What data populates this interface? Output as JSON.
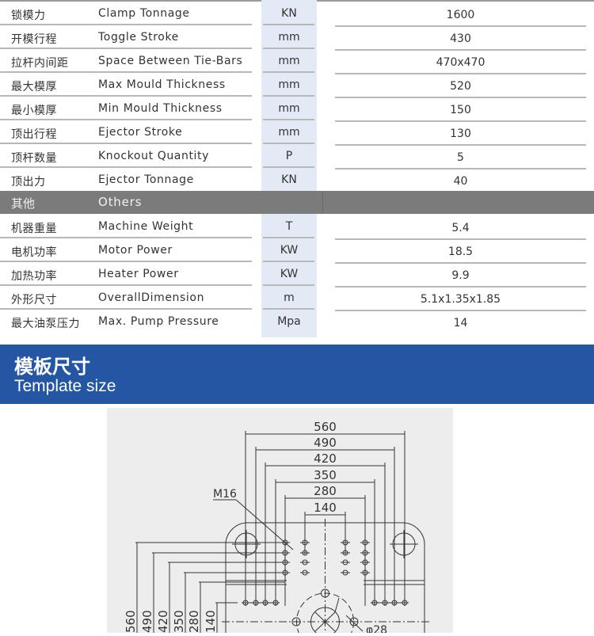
{
  "spec_rows_top": [
    {
      "cn": "锁模力",
      "en": "Clamp Tonnage",
      "unit": "KN",
      "value": "1600"
    },
    {
      "cn": "开模行程",
      "en": "Toggle Stroke",
      "unit": "mm",
      "value": "430"
    },
    {
      "cn": "拉杆内间距",
      "en": "Space Between Tie-Bars",
      "unit": "mm",
      "value": "470x470"
    },
    {
      "cn": "最大模厚",
      "en": "Max  Mould Thickness",
      "unit": "mm",
      "value": "520"
    },
    {
      "cn": "最小模厚",
      "en": "Min  Mould Thickness",
      "unit": "mm",
      "value": "150"
    },
    {
      "cn": "顶出行程",
      "en": "Ejector Stroke",
      "unit": "mm",
      "value": "130"
    },
    {
      "cn": "顶杆数量",
      "en": "Knockout Quantity",
      "unit": "P",
      "value": "5"
    },
    {
      "cn": "顶出力",
      "en": "Ejector Tonnage",
      "unit": "KN",
      "value": "40"
    }
  ],
  "others_header": {
    "cn": "其他",
    "en": "Others"
  },
  "spec_rows_bottom": [
    {
      "cn": "机器重量",
      "en": "Machine Weight",
      "unit": "T",
      "value": "5.4"
    },
    {
      "cn": "电机功率",
      "en": "Motor Power",
      "unit": "KW",
      "value": "18.5"
    },
    {
      "cn": "加热功率",
      "en": "Heater Power",
      "unit": "KW",
      "value": "9.9"
    },
    {
      "cn": "外形尺寸",
      "en": "OverallDimension",
      "unit": "m",
      "value": "5.1x1.35x1.85"
    },
    {
      "cn": "最大油泵压力",
      "en": "Max. Pump Pressure",
      "unit": "Mpa",
      "value": "14"
    }
  ],
  "section": {
    "cn": "模板尺寸",
    "en": "Template size"
  },
  "colors": {
    "band": "#2456a4",
    "others_band": "#7b7b7b",
    "unit_column": "#e3eaf5"
  },
  "drawing": {
    "horizontal_dims": [
      "560",
      "490",
      "420",
      "350",
      "280",
      "140"
    ],
    "vertical_dims": [
      "560",
      "490",
      "420",
      "350",
      "280",
      "140"
    ],
    "thread_label": "M16",
    "hole_label": "φ28"
  }
}
